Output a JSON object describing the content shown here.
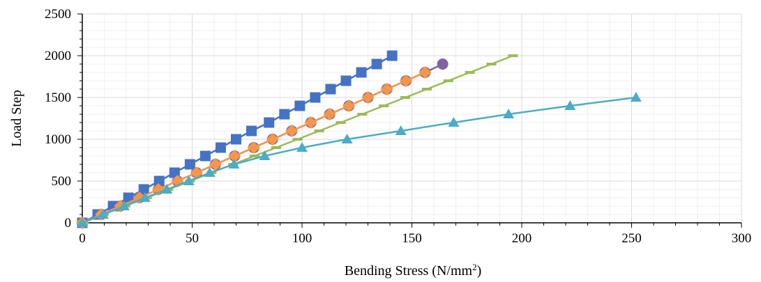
{
  "chart_data": {
    "type": "scatter",
    "title": "",
    "xlabel": "Bending Stress (N/mm",
    "xlabel_sup": "2",
    "xlabel_end": ")",
    "ylabel": "Load Step",
    "xlim": [
      0,
      300
    ],
    "ylim": [
      0,
      2500
    ],
    "x_ticks": [
      "0",
      "50",
      "100",
      "150",
      "200",
      "250",
      "300"
    ],
    "y_ticks": [
      "0",
      "500",
      "1000",
      "1500",
      "2000",
      "2500"
    ],
    "grid": true,
    "legend": "none",
    "series": [
      {
        "color": "#4472C4",
        "marker": "square",
        "points": [
          [
            0,
            0
          ],
          [
            7,
            100
          ],
          [
            14,
            200
          ],
          [
            21,
            300
          ],
          [
            28,
            400
          ],
          [
            35,
            500
          ],
          [
            42,
            600
          ],
          [
            49,
            700
          ],
          [
            56,
            800
          ],
          [
            63,
            900
          ],
          [
            70,
            1000
          ],
          [
            77,
            1100
          ],
          [
            85,
            1200
          ],
          [
            92,
            1300
          ],
          [
            99,
            1400
          ],
          [
            106,
            1500
          ],
          [
            113,
            1600
          ],
          [
            120,
            1700
          ],
          [
            127,
            1800
          ],
          [
            134,
            1900
          ],
          [
            141,
            2000
          ]
        ]
      },
      {
        "color": "#8064A2",
        "marker": "circle",
        "points": [
          [
            0,
            0
          ],
          [
            8.6,
            100
          ],
          [
            17.3,
            200
          ],
          [
            26,
            300
          ],
          [
            34.6,
            400
          ],
          [
            43.3,
            500
          ],
          [
            52,
            600
          ],
          [
            60.6,
            700
          ],
          [
            69.3,
            800
          ],
          [
            78,
            900
          ],
          [
            86.6,
            1000
          ],
          [
            95.3,
            1100
          ],
          [
            104,
            1200
          ],
          [
            112.6,
            1300
          ],
          [
            121.3,
            1400
          ],
          [
            130,
            1500
          ],
          [
            138.6,
            1600
          ],
          [
            147.3,
            1700
          ],
          [
            156,
            1800
          ],
          [
            164,
            1900
          ]
        ]
      },
      {
        "color": "#F79646",
        "marker": "diamond",
        "points": [
          [
            0,
            0
          ],
          [
            8.6,
            100
          ],
          [
            17.3,
            200
          ],
          [
            26,
            300
          ],
          [
            34.6,
            400
          ],
          [
            43.3,
            500
          ],
          [
            52,
            600
          ],
          [
            60.6,
            700
          ],
          [
            69.3,
            800
          ],
          [
            78,
            900
          ],
          [
            86.6,
            1000
          ],
          [
            95.3,
            1100
          ],
          [
            104,
            1200
          ],
          [
            112.6,
            1300
          ],
          [
            121.3,
            1400
          ],
          [
            130,
            1500
          ],
          [
            138.6,
            1600
          ],
          [
            147.3,
            1700
          ],
          [
            156,
            1800
          ]
        ]
      },
      {
        "color": "#9BBB59",
        "marker": "dash",
        "points": [
          [
            0,
            0
          ],
          [
            9.8,
            100
          ],
          [
            19.6,
            200
          ],
          [
            29.4,
            300
          ],
          [
            39.2,
            400
          ],
          [
            49,
            500
          ],
          [
            58.8,
            600
          ],
          [
            68.6,
            700
          ],
          [
            78.4,
            800
          ],
          [
            88.2,
            900
          ],
          [
            98,
            1000
          ],
          [
            107.8,
            1100
          ],
          [
            117.6,
            1200
          ],
          [
            127.4,
            1300
          ],
          [
            137.2,
            1400
          ],
          [
            147,
            1500
          ],
          [
            156.8,
            1600
          ],
          [
            166.6,
            1700
          ],
          [
            176.4,
            1800
          ],
          [
            186.2,
            1900
          ],
          [
            196,
            2000
          ]
        ]
      },
      {
        "color": "#4BACC6",
        "marker": "triangle",
        "points": [
          [
            0,
            0
          ],
          [
            9.5,
            100
          ],
          [
            19,
            200
          ],
          [
            28.5,
            300
          ],
          [
            38.5,
            400
          ],
          [
            48.5,
            500
          ],
          [
            58,
            600
          ],
          [
            69,
            700
          ],
          [
            83,
            800
          ],
          [
            100,
            900
          ],
          [
            120.5,
            1000
          ],
          [
            145,
            1100
          ],
          [
            169,
            1200
          ],
          [
            194,
            1300
          ],
          [
            222,
            1400
          ],
          [
            252,
            1500
          ]
        ]
      }
    ]
  }
}
